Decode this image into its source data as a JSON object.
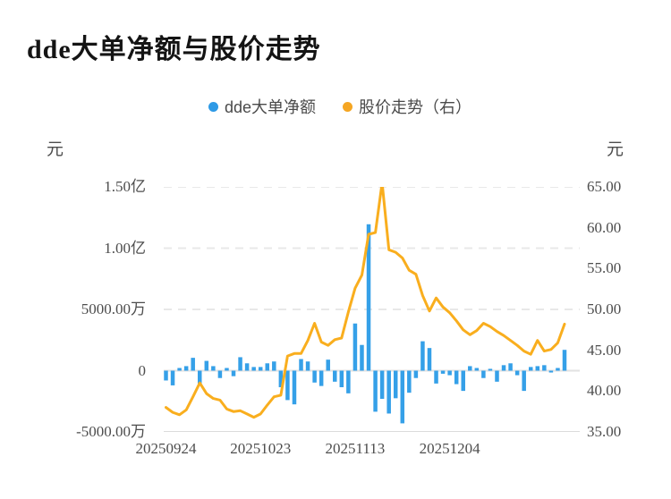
{
  "title": "dde大单净额与股价走势",
  "legend": [
    {
      "label": "dde大单净额",
      "color": "#2E9AE6"
    },
    {
      "label": "股价走势（右）",
      "color": "#F5A623"
    }
  ],
  "left_axis": {
    "unit": "元",
    "ticks": [
      "1.50亿",
      "1.00亿",
      "5000.00万",
      "0",
      "-5000.00万"
    ]
  },
  "right_axis": {
    "unit": "元",
    "ticks": [
      "65.00",
      "60.00",
      "55.00",
      "50.00",
      "45.00",
      "40.00",
      "35.00"
    ]
  },
  "x_axis": {
    "ticks": [
      "20250924",
      "20251023",
      "20251113",
      "20251204"
    ]
  },
  "chart_data": {
    "type": "combo",
    "n_points": 60,
    "x_tick_labels": [
      "20250924",
      "20251023",
      "20251113",
      "20251204"
    ],
    "x_tick_indices": [
      0,
      14,
      28,
      42
    ],
    "left_ylim_yuan": [
      -50000000,
      150000000
    ],
    "left_grid_values_yuan": [
      150000000,
      100000000,
      50000000,
      0,
      -50000000
    ],
    "right_ylim": [
      35,
      65
    ],
    "right_tick_values": [
      65,
      60,
      55,
      50,
      45,
      40,
      35
    ],
    "grid": "dashed horizontal",
    "legend_position": "top-center",
    "series": [
      {
        "name": "dde大单净额",
        "type": "bar",
        "axis": "left",
        "unit": "万元",
        "color": "#35A0E8",
        "values_wan": [
          -800,
          -1200,
          220,
          370,
          1050,
          -1050,
          800,
          370,
          -600,
          220,
          -450,
          1100,
          600,
          300,
          300,
          600,
          750,
          -1350,
          -2400,
          -2750,
          950,
          750,
          -970,
          -1250,
          900,
          -900,
          -1350,
          -1850,
          3850,
          2100,
          11950,
          -3350,
          -2300,
          -3500,
          -2250,
          -4300,
          -1800,
          -600,
          2400,
          1850,
          -1050,
          -250,
          -370,
          -1100,
          -1650,
          370,
          220,
          -600,
          150,
          -900,
          450,
          600,
          -370,
          -1650,
          300,
          370,
          450,
          -150,
          220,
          1700
        ]
      },
      {
        "name": "股价走势（右）",
        "type": "line",
        "axis": "right",
        "unit": "元",
        "color": "#F9AE1E",
        "values": [
          38.0,
          37.4,
          37.1,
          37.7,
          39.3,
          41.0,
          39.7,
          39.1,
          38.9,
          37.8,
          37.5,
          37.6,
          37.2,
          36.8,
          37.2,
          38.3,
          39.3,
          39.5,
          44.3,
          44.6,
          44.6,
          46.2,
          48.3,
          46.0,
          45.6,
          46.3,
          46.5,
          49.7,
          52.6,
          54.2,
          59.2,
          59.4,
          65.5,
          57.3,
          57.0,
          56.3,
          54.8,
          54.3,
          51.7,
          49.8,
          51.4,
          50.3,
          49.6,
          48.6,
          47.5,
          46.9,
          47.4,
          48.3,
          47.9,
          47.3,
          46.8,
          46.2,
          45.6,
          44.9,
          44.5,
          46.2,
          44.9,
          45.1,
          45.9,
          48.2
        ]
      }
    ]
  },
  "colors": {
    "bar": "#35A0E8",
    "line": "#F9AE1E",
    "grid_dashed": "#E8E8E8",
    "grid_zero": "#E2E2E2",
    "grid_bottom": "#DBDBDB",
    "tick_text": "#4d4d4d",
    "title_text": "#141414"
  }
}
